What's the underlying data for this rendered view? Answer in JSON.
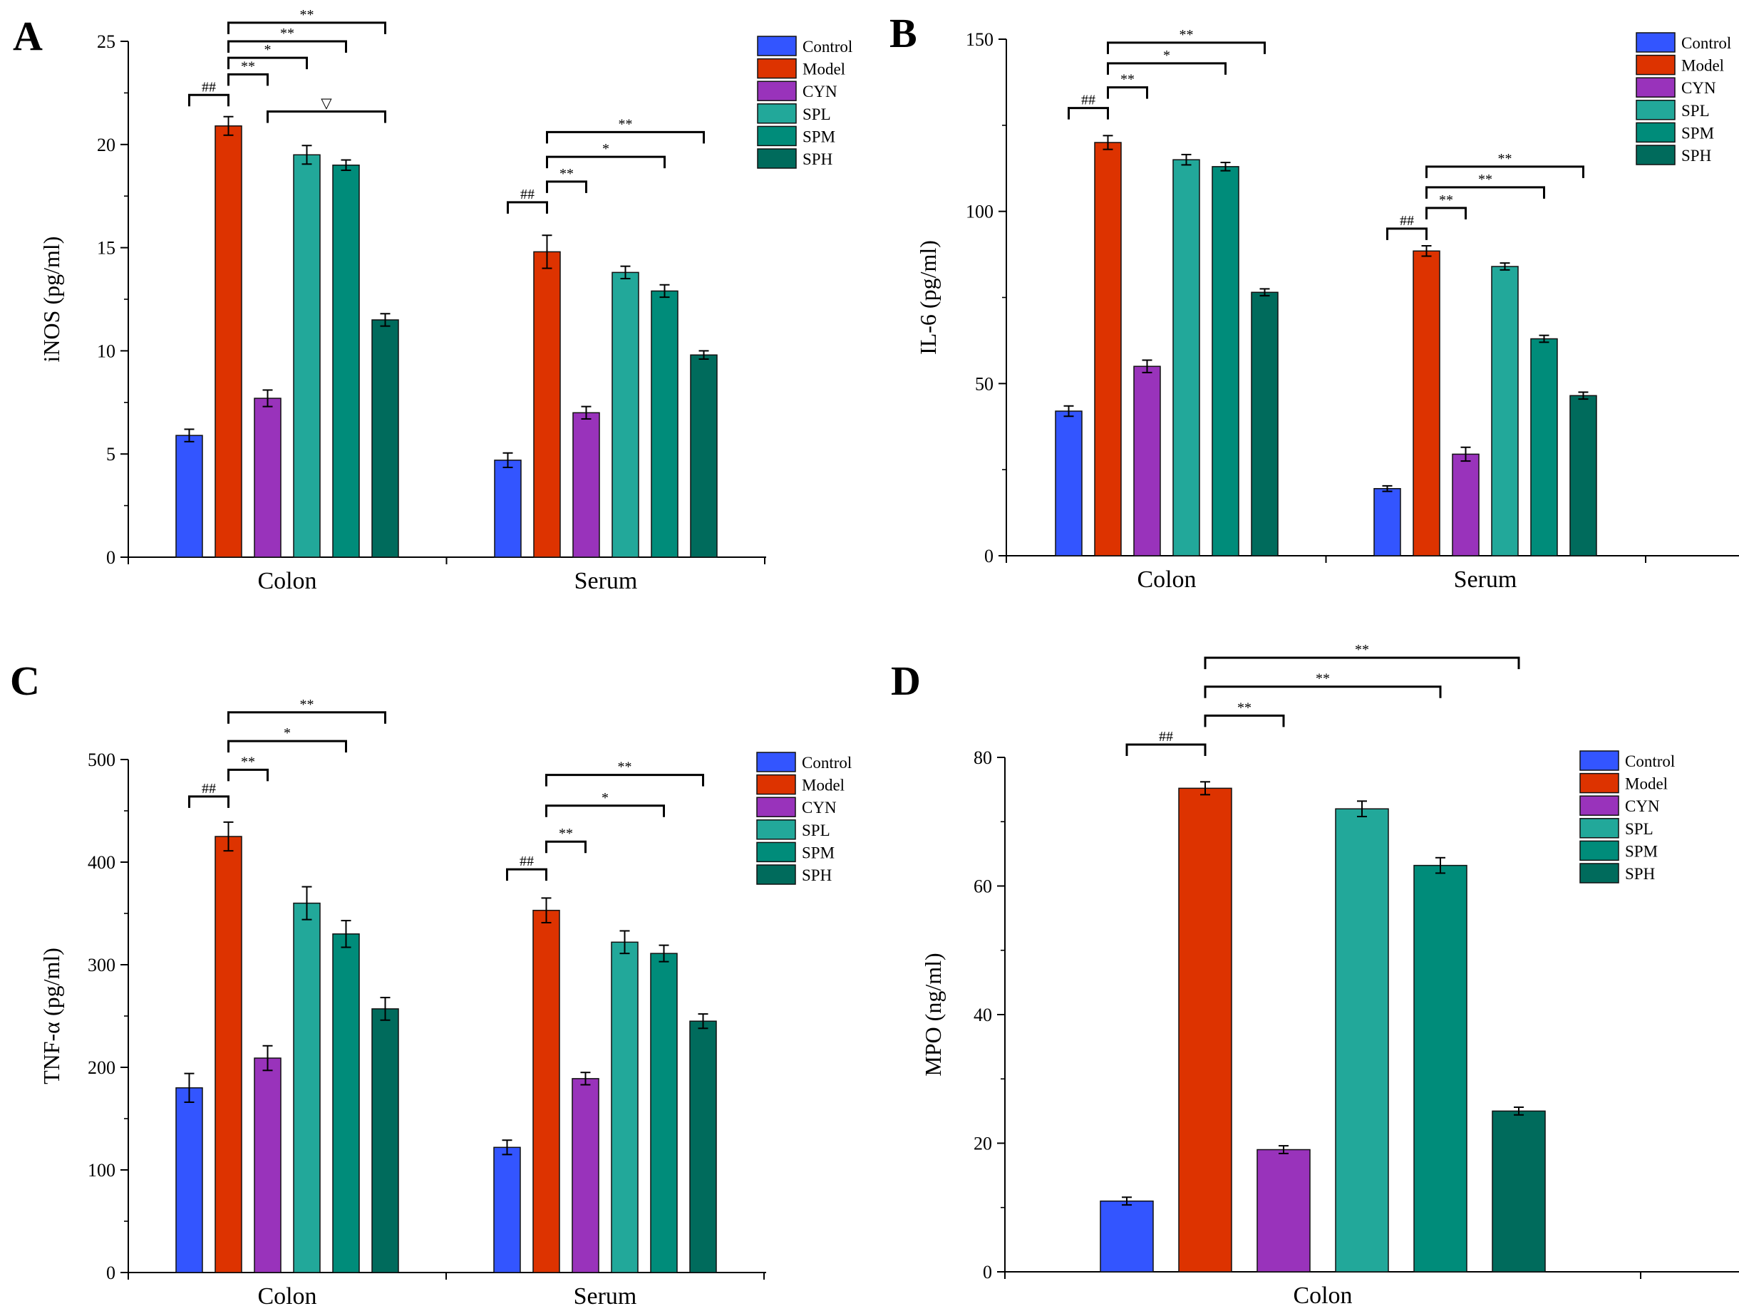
{
  "legend_entries": [
    "Control",
    "Model",
    "CYN",
    "SPL",
    "SPM",
    "SPH"
  ],
  "colors": {
    "Control": "#3355ff",
    "Model": "#dd3300",
    "CYN": "#9933bb",
    "SPL": "#22a89a",
    "SPM": "#008c7a",
    "SPH": "#006b5c"
  },
  "chart_data": [
    {
      "panel": "A",
      "type": "bar",
      "ylabel": "iNOS (pg/ml)",
      "ylim": [
        0,
        25
      ],
      "yticks": [
        0,
        5,
        10,
        15,
        20,
        25
      ],
      "categories": [
        "Colon",
        "Serum"
      ],
      "series": [
        {
          "name": "Control",
          "values": [
            5.9,
            4.7
          ],
          "errors": [
            0.3,
            0.35
          ]
        },
        {
          "name": "Model",
          "values": [
            20.9,
            14.8
          ],
          "errors": [
            0.45,
            0.8
          ]
        },
        {
          "name": "CYN",
          "values": [
            7.7,
            7.0
          ],
          "errors": [
            0.4,
            0.3
          ]
        },
        {
          "name": "SPL",
          "values": [
            19.5,
            13.8
          ],
          "errors": [
            0.45,
            0.3
          ]
        },
        {
          "name": "SPM",
          "values": [
            19.0,
            12.9
          ],
          "errors": [
            0.25,
            0.3
          ]
        },
        {
          "name": "SPH",
          "values": [
            11.5,
            9.8
          ],
          "errors": [
            0.3,
            0.2
          ]
        }
      ],
      "annotations": [
        {
          "cat": 0,
          "from": "Control",
          "to": "Model",
          "label": "##",
          "y": 22.4
        },
        {
          "cat": 0,
          "from": "Model",
          "to": "CYN",
          "label": "**",
          "y": 23.4
        },
        {
          "cat": 0,
          "from": "Model",
          "to": "SPL",
          "label": "*",
          "y": 24.2
        },
        {
          "cat": 0,
          "from": "Model",
          "to": "SPM",
          "label": "**",
          "y": 25.0
        },
        {
          "cat": 0,
          "from": "Model",
          "to": "SPH",
          "label": "**",
          "y": 25.9
        },
        {
          "cat": 0,
          "from": "CYN",
          "to": "SPH",
          "label": "▽",
          "y": 21.6
        },
        {
          "cat": 1,
          "from": "Control",
          "to": "Model",
          "label": "##",
          "y": 17.2
        },
        {
          "cat": 1,
          "from": "Model",
          "to": "CYN",
          "label": "**",
          "y": 18.2
        },
        {
          "cat": 1,
          "from": "Model",
          "to": "SPM",
          "label": "*",
          "y": 19.4
        },
        {
          "cat": 1,
          "from": "Model",
          "to": "SPH",
          "label": "**",
          "y": 20.6
        }
      ]
    },
    {
      "panel": "B",
      "type": "bar",
      "ylabel": "IL-6 (pg/ml)",
      "ylim": [
        0,
        150
      ],
      "yticks": [
        0,
        50,
        100,
        150
      ],
      "categories": [
        "Colon",
        "Serum"
      ],
      "series": [
        {
          "name": "Control",
          "values": [
            42,
            19.5
          ],
          "errors": [
            1.5,
            0.8
          ]
        },
        {
          "name": "Model",
          "values": [
            120,
            88.5
          ],
          "errors": [
            2,
            1.5
          ]
        },
        {
          "name": "CYN",
          "values": [
            55,
            29.5
          ],
          "errors": [
            1.8,
            2
          ]
        },
        {
          "name": "SPL",
          "values": [
            115,
            84
          ],
          "errors": [
            1.5,
            1
          ]
        },
        {
          "name": "SPM",
          "values": [
            113,
            63
          ],
          "errors": [
            1.2,
            1
          ]
        },
        {
          "name": "SPH",
          "values": [
            76.5,
            46.5
          ],
          "errors": [
            1,
            1
          ]
        }
      ],
      "annotations": [
        {
          "cat": 0,
          "from": "Control",
          "to": "Model",
          "label": "##",
          "y": 130
        },
        {
          "cat": 0,
          "from": "Model",
          "to": "CYN",
          "label": "**",
          "y": 136
        },
        {
          "cat": 0,
          "from": "Model",
          "to": "SPM",
          "label": "*",
          "y": 143
        },
        {
          "cat": 0,
          "from": "Model",
          "to": "SPH",
          "label": "**",
          "y": 149
        },
        {
          "cat": 1,
          "from": "Control",
          "to": "Model",
          "label": "##",
          "y": 95
        },
        {
          "cat": 1,
          "from": "Model",
          "to": "CYN",
          "label": "**",
          "y": 101
        },
        {
          "cat": 1,
          "from": "Model",
          "to": "SPM",
          "label": "**",
          "y": 107
        },
        {
          "cat": 1,
          "from": "Model",
          "to": "SPH",
          "label": "**",
          "y": 113
        }
      ]
    },
    {
      "panel": "C",
      "type": "bar",
      "ylabel": "TNF-α (pg/ml)",
      "ylim": [
        0,
        500
      ],
      "yticks": [
        0,
        100,
        200,
        300,
        400,
        500
      ],
      "categories": [
        "Colon",
        "Serum"
      ],
      "series": [
        {
          "name": "Control",
          "values": [
            180,
            122
          ],
          "errors": [
            14,
            7
          ]
        },
        {
          "name": "Model",
          "values": [
            425,
            353
          ],
          "errors": [
            14,
            12
          ]
        },
        {
          "name": "CYN",
          "values": [
            209,
            189
          ],
          "errors": [
            12,
            6
          ]
        },
        {
          "name": "SPL",
          "values": [
            360,
            322
          ],
          "errors": [
            16,
            11
          ]
        },
        {
          "name": "SPM",
          "values": [
            330,
            311
          ],
          "errors": [
            13,
            8
          ]
        },
        {
          "name": "SPH",
          "values": [
            257,
            245
          ],
          "errors": [
            11,
            7
          ]
        }
      ],
      "annotations": [
        {
          "cat": 0,
          "from": "Control",
          "to": "Model",
          "label": "##",
          "y": 464
        },
        {
          "cat": 0,
          "from": "Model",
          "to": "CYN",
          "label": "**",
          "y": 490
        },
        {
          "cat": 0,
          "from": "Model",
          "to": "SPM",
          "label": "*",
          "y": 518
        },
        {
          "cat": 0,
          "from": "Model",
          "to": "SPH",
          "label": "**",
          "y": 546
        },
        {
          "cat": 1,
          "from": "Control",
          "to": "Model",
          "label": "##",
          "y": 393
        },
        {
          "cat": 1,
          "from": "Model",
          "to": "CYN",
          "label": "**",
          "y": 420
        },
        {
          "cat": 1,
          "from": "Model",
          "to": "SPM",
          "label": "*",
          "y": 455
        },
        {
          "cat": 1,
          "from": "Model",
          "to": "SPH",
          "label": "**",
          "y": 485
        }
      ]
    },
    {
      "panel": "D",
      "type": "bar",
      "ylabel": "MPO (ng/ml)",
      "ylim": [
        0,
        80
      ],
      "yticks": [
        0,
        20,
        40,
        60,
        80
      ],
      "categories": [
        "Colon"
      ],
      "series": [
        {
          "name": "Control",
          "values": [
            11
          ],
          "errors": [
            0.6
          ]
        },
        {
          "name": "Model",
          "values": [
            75.2
          ],
          "errors": [
            1
          ]
        },
        {
          "name": "CYN",
          "values": [
            19
          ],
          "errors": [
            0.6
          ]
        },
        {
          "name": "SPL",
          "values": [
            72
          ],
          "errors": [
            1.2
          ]
        },
        {
          "name": "SPM",
          "values": [
            63.2
          ],
          "errors": [
            1.2
          ]
        },
        {
          "name": "SPH",
          "values": [
            25
          ],
          "errors": [
            0.6
          ]
        }
      ],
      "annotations": [
        {
          "cat": 0,
          "from": "Control",
          "to": "Model",
          "label": "##",
          "y": 82
        },
        {
          "cat": 0,
          "from": "Model",
          "to": "CYN",
          "label": "**",
          "y": 86.5
        },
        {
          "cat": 0,
          "from": "Model",
          "to": "SPM",
          "label": "**",
          "y": 91
        },
        {
          "cat": 0,
          "from": "Model",
          "to": "SPH",
          "label": "**",
          "y": 95.5
        }
      ]
    }
  ]
}
